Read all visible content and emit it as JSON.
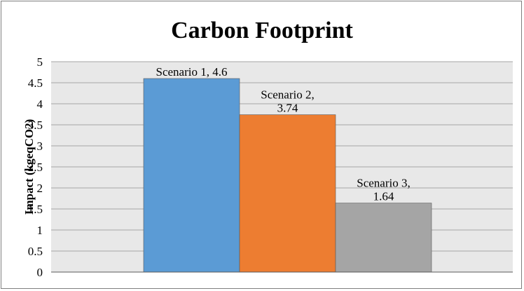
{
  "chart_data": {
    "type": "bar",
    "title": "Carbon Footprint",
    "xlabel": "",
    "ylabel": "Impact (kgeqCO2)",
    "categories": [
      "Scenario 1",
      "Scenario 2",
      "Scenario 3"
    ],
    "values": [
      4.6,
      3.74,
      1.64
    ],
    "data_labels": [
      [
        "Scenario 1, 4.6"
      ],
      [
        "Scenario 2,",
        "3.74"
      ],
      [
        "Scenario 3,",
        "1.64"
      ]
    ],
    "bar_colors": [
      "#5b9bd5",
      "#ed7d31",
      "#a5a5a5"
    ],
    "ylim": [
      0,
      5
    ],
    "yticks": [
      0,
      0.5,
      1,
      1.5,
      2,
      2.5,
      3,
      3.5,
      4,
      4.5,
      5
    ],
    "ytick_labels": [
      "0",
      "0.5",
      "1",
      "1.5",
      "2",
      "2.5",
      "3",
      "3.5",
      "4",
      "4.5",
      "5"
    ],
    "grid": true,
    "plot_background": "#e8e8e8",
    "legend": "none"
  }
}
